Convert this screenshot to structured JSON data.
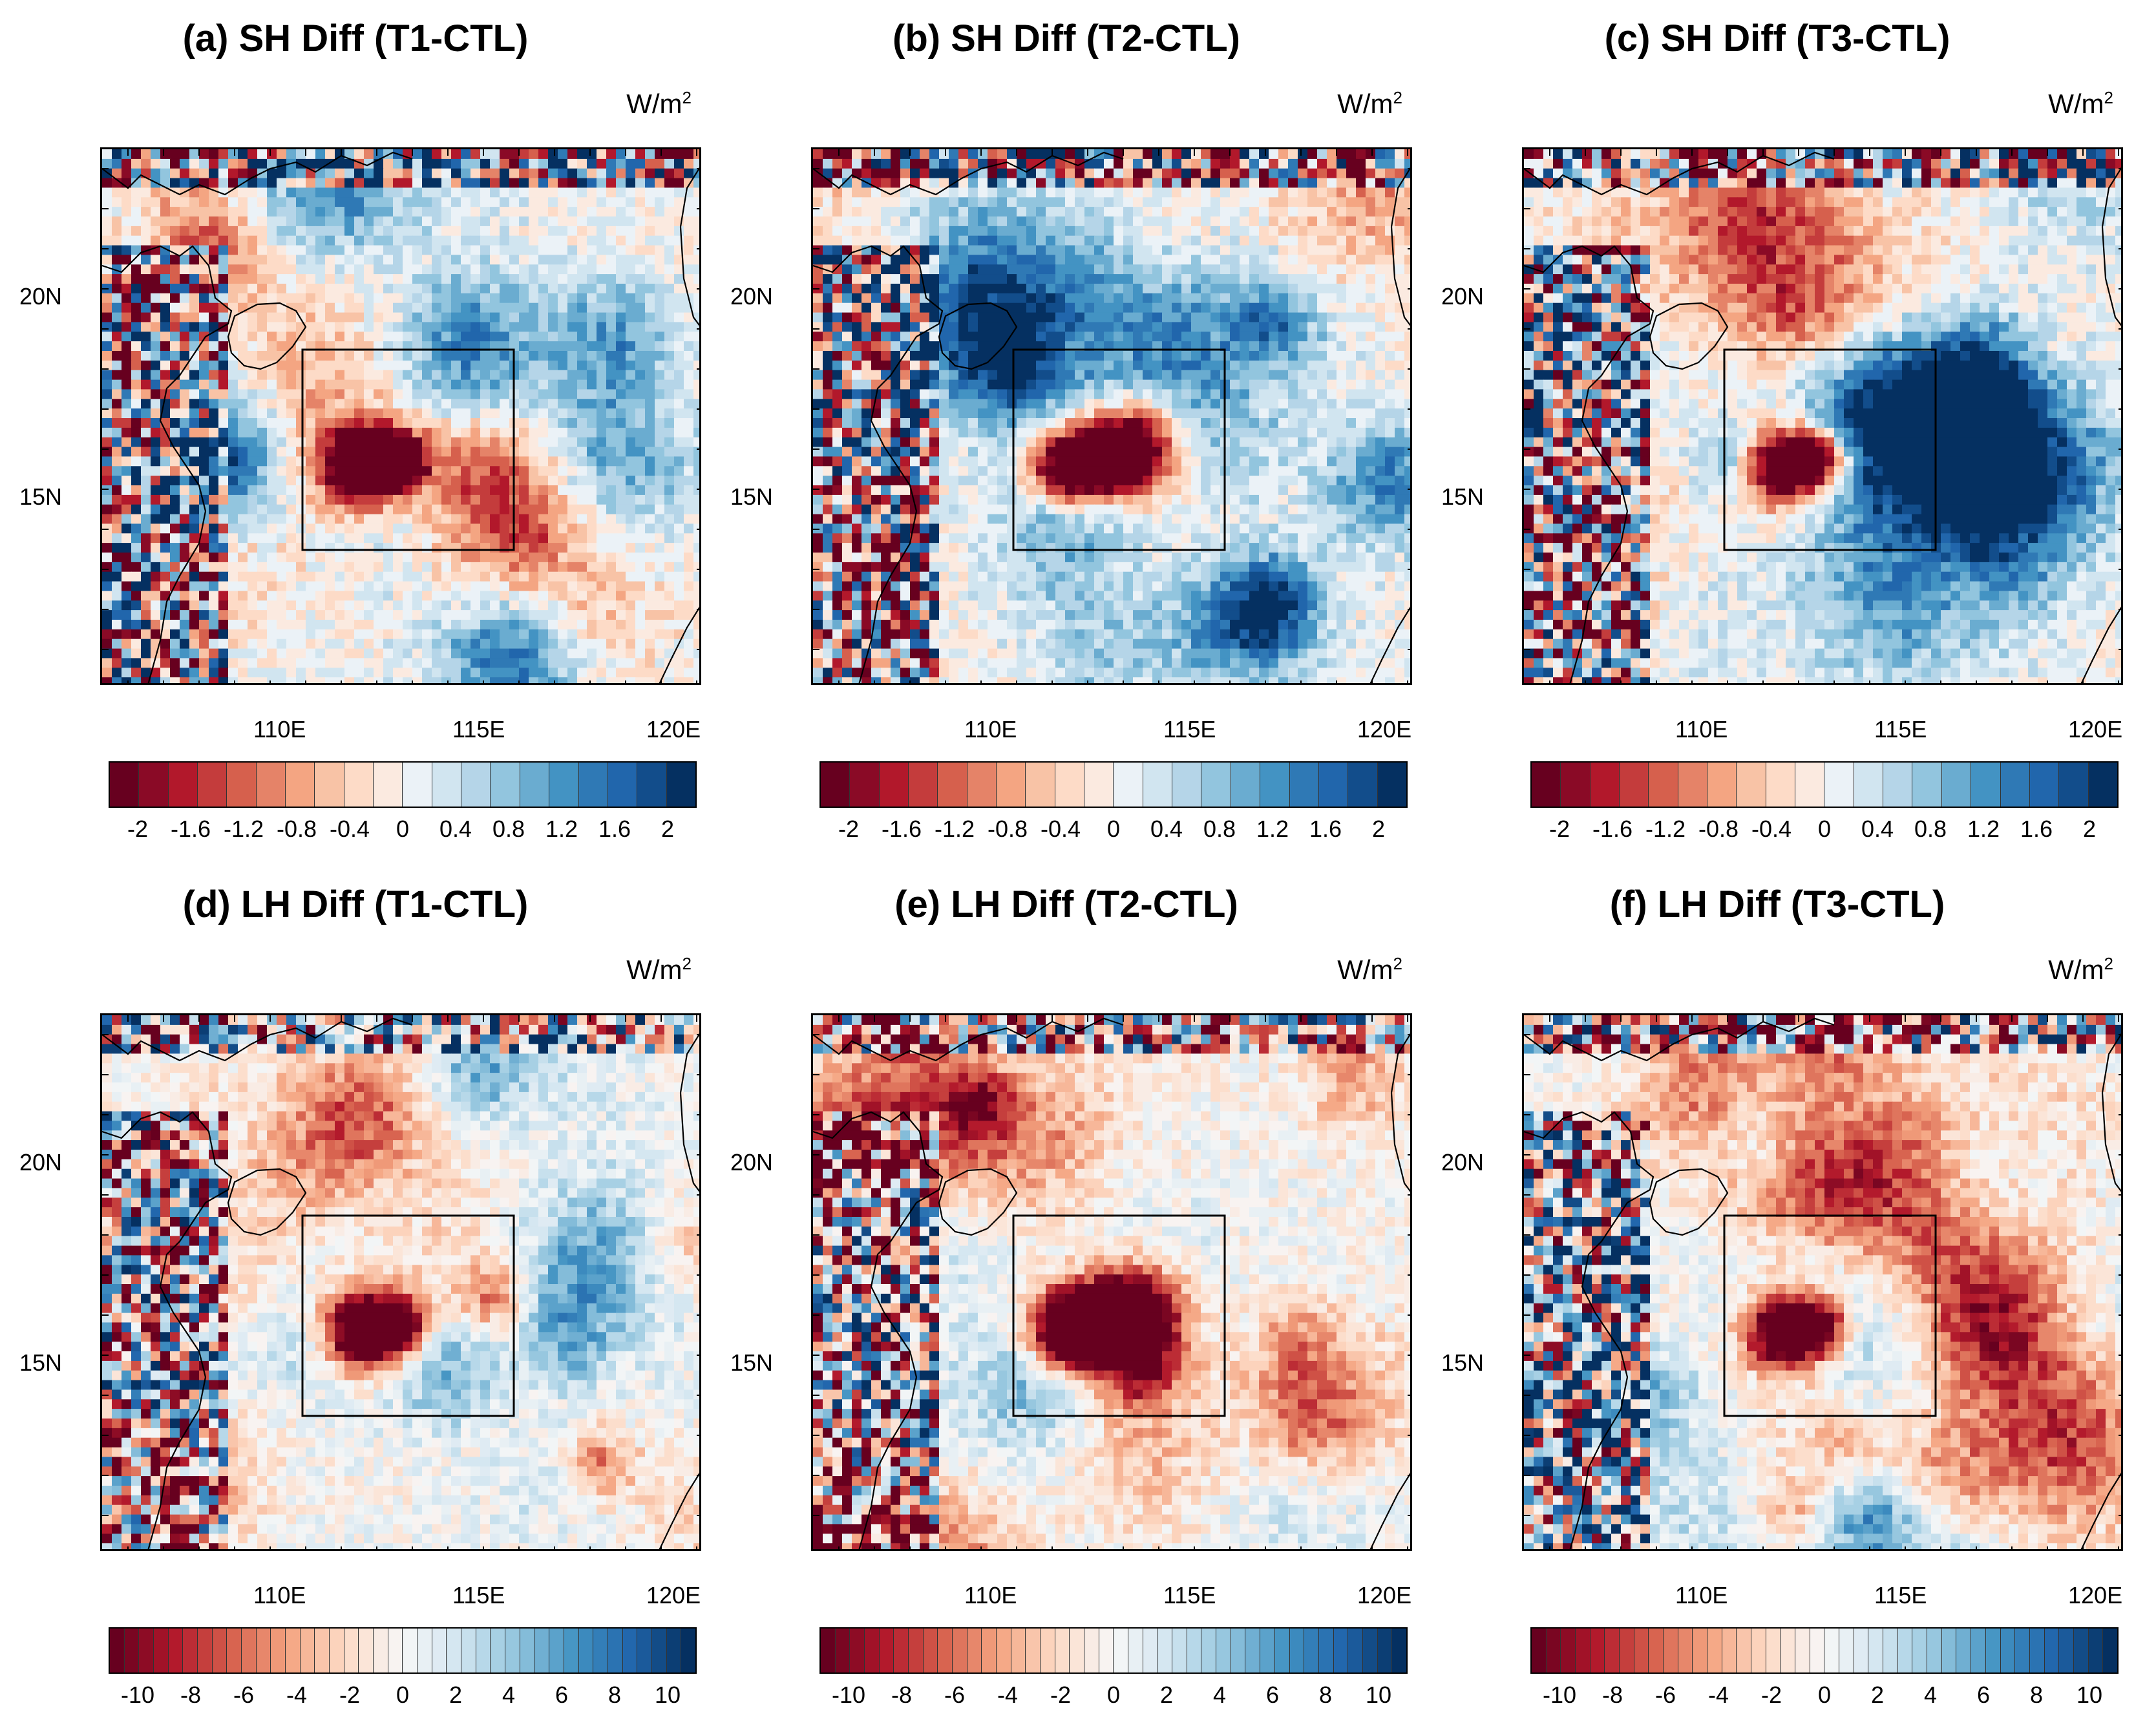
{
  "colors": {
    "neg_dark": "#67001f",
    "neg_mid": "#d6604d",
    "neg_light": "#fddbc7",
    "zero": "#f7f7f7",
    "pos_light": "#d1e5f0",
    "pos_mid": "#4393c3",
    "pos_dark": "#053061",
    "land_line": "#000000"
  },
  "units": {
    "text": "W/m",
    "sup": "2"
  },
  "latitude_labels": [
    "20N",
    "15N"
  ],
  "longitude_labels": [
    "110E",
    "115E",
    "120E"
  ],
  "sh_colorbar_ticks": [
    "-2",
    "-1.6",
    "-1.2",
    "-0.8",
    "-0.4",
    "0",
    "0.4",
    "0.8",
    "1.2",
    "1.6",
    "2"
  ],
  "lh_colorbar_ticks": [
    "-10",
    "-8",
    "-6",
    "-4",
    "-2",
    "0",
    "2",
    "4",
    "6",
    "8",
    "10"
  ],
  "panels": [
    {
      "title": "(a) SH Diff (T1-CTL)",
      "variable": "SH",
      "range": [
        -2,
        2
      ]
    },
    {
      "title": "(b) SH Diff (T2-CTL)",
      "variable": "SH",
      "range": [
        -2,
        2
      ]
    },
    {
      "title": "(c) SH Diff (T3-CTL)",
      "variable": "SH",
      "range": [
        -2,
        2
      ]
    },
    {
      "title": "(d) LH Diff (T1-CTL)",
      "variable": "LH",
      "range": [
        -10,
        10
      ]
    },
    {
      "title": "(e) LH Diff (T2-CTL)",
      "variable": "LH",
      "range": [
        -10,
        10
      ]
    },
    {
      "title": "(f) LH Diff (T3-CTL)",
      "variable": "LH",
      "range": [
        -10,
        10
      ]
    }
  ]
}
